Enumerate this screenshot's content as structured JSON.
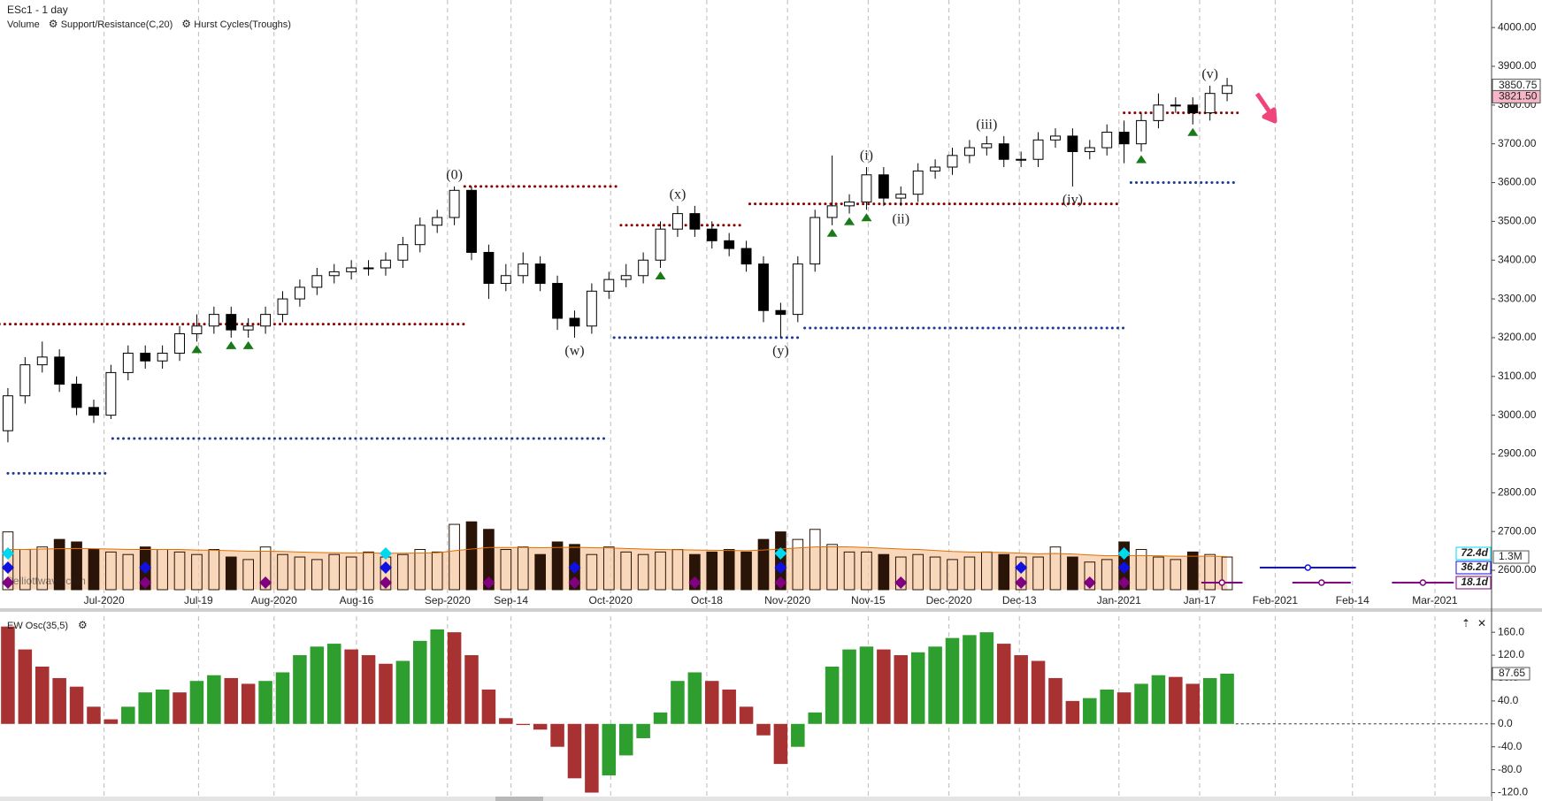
{
  "chart_data": [
    {
      "type": "candlestick",
      "title": "ESc1 - 1 day",
      "indicators": [
        {
          "name": "Volume",
          "color": "#e07000"
        },
        {
          "name": "Support/Resistance(C,20)",
          "color": "#8b0000"
        },
        {
          "name": "Hurst Cycles(Troughs)",
          "color": "#222222"
        }
      ],
      "watermark": "©elliottwave.com",
      "open": [
        2960,
        3050,
        3130,
        3150,
        3080,
        3020,
        3000,
        3110,
        3160,
        3140,
        3160,
        3210,
        3230,
        3260,
        3220,
        3230,
        3260,
        3300,
        3330,
        3360,
        3370,
        3380,
        3380,
        3400,
        3440,
        3490,
        3510,
        3580,
        3420,
        3340,
        3360,
        3390,
        3340,
        3250,
        3230,
        3320,
        3350,
        3360,
        3400,
        3480,
        3520,
        3480,
        3450,
        3430,
        3390,
        3270,
        3260,
        3390,
        3510,
        3540,
        3550,
        3620,
        3560,
        3570,
        3630,
        3640,
        3670,
        3690,
        3700,
        3660,
        3660,
        3710,
        3720,
        3680,
        3690,
        3730,
        3700,
        3760,
        3800,
        3800,
        3780,
        3830
      ],
      "high": [
        3070,
        3150,
        3190,
        3170,
        3100,
        3040,
        3130,
        3180,
        3180,
        3180,
        3230,
        3260,
        3280,
        3280,
        3250,
        3280,
        3320,
        3350,
        3380,
        3390,
        3400,
        3400,
        3420,
        3460,
        3510,
        3530,
        3590,
        3590,
        3440,
        3390,
        3420,
        3410,
        3360,
        3270,
        3340,
        3370,
        3390,
        3420,
        3500,
        3540,
        3540,
        3500,
        3470,
        3450,
        3410,
        3290,
        3410,
        3530,
        3670,
        3570,
        3640,
        3640,
        3590,
        3650,
        3660,
        3690,
        3710,
        3720,
        3720,
        3680,
        3730,
        3740,
        3740,
        3710,
        3750,
        3760,
        3780,
        3830,
        3820,
        3820,
        3850,
        3870
      ],
      "low": [
        2930,
        3030,
        3110,
        3060,
        3000,
        2980,
        2990,
        3090,
        3120,
        3120,
        3140,
        3190,
        3210,
        3200,
        3200,
        3210,
        3240,
        3280,
        3310,
        3340,
        3350,
        3360,
        3360,
        3380,
        3420,
        3470,
        3490,
        3400,
        3300,
        3320,
        3340,
        3320,
        3220,
        3200,
        3210,
        3300,
        3330,
        3340,
        3380,
        3460,
        3460,
        3430,
        3410,
        3370,
        3240,
        3200,
        3240,
        3370,
        3490,
        3520,
        3530,
        3540,
        3540,
        3550,
        3610,
        3620,
        3650,
        3670,
        3640,
        3640,
        3640,
        3690,
        3590,
        3660,
        3670,
        3650,
        3680,
        3740,
        3780,
        3750,
        3760,
        3810
      ],
      "close": [
        3050,
        3130,
        3150,
        3080,
        3020,
        3000,
        3110,
        3160,
        3140,
        3160,
        3210,
        3230,
        3260,
        3220,
        3230,
        3260,
        3300,
        3330,
        3360,
        3370,
        3380,
        3380,
        3400,
        3440,
        3490,
        3510,
        3580,
        3420,
        3340,
        3360,
        3390,
        3340,
        3250,
        3230,
        3320,
        3350,
        3360,
        3400,
        3480,
        3520,
        3480,
        3450,
        3430,
        3390,
        3270,
        3260,
        3390,
        3510,
        3540,
        3550,
        3620,
        3560,
        3570,
        3630,
        3640,
        3670,
        3690,
        3700,
        3660,
        3660,
        3710,
        3720,
        3680,
        3690,
        3730,
        3700,
        3760,
        3800,
        3800,
        3780,
        3830,
        3850
      ],
      "volume": [
        2.3,
        1.6,
        1.7,
        2.0,
        1.9,
        1.6,
        1.5,
        1.4,
        1.7,
        1.6,
        1.5,
        1.4,
        1.6,
        1.3,
        1.2,
        1.7,
        1.4,
        1.3,
        1.2,
        1.4,
        1.3,
        1.5,
        1.3,
        1.4,
        1.6,
        1.5,
        2.6,
        2.7,
        2.4,
        1.6,
        1.7,
        1.4,
        1.9,
        1.8,
        1.4,
        1.7,
        1.5,
        1.4,
        1.5,
        1.6,
        1.4,
        1.5,
        1.6,
        1.5,
        2.0,
        2.3,
        2.0,
        2.4,
        1.8,
        1.5,
        1.5,
        1.4,
        1.3,
        1.4,
        1.3,
        1.2,
        1.3,
        1.5,
        1.4,
        1.3,
        1.3,
        1.7,
        1.3,
        1.1,
        1.2,
        1.9,
        1.6,
        1.3,
        1.2,
        1.5,
        1.4,
        1.3
      ],
      "volume_ma": [
        1.6,
        1.6,
        1.62,
        1.63,
        1.64,
        1.63,
        1.62,
        1.6,
        1.6,
        1.6,
        1.6,
        1.58,
        1.57,
        1.55,
        1.53,
        1.53,
        1.52,
        1.5,
        1.48,
        1.47,
        1.46,
        1.46,
        1.45,
        1.45,
        1.46,
        1.47,
        1.55,
        1.62,
        1.68,
        1.68,
        1.68,
        1.67,
        1.68,
        1.69,
        1.67,
        1.66,
        1.64,
        1.62,
        1.6,
        1.59,
        1.58,
        1.57,
        1.56,
        1.55,
        1.58,
        1.62,
        1.66,
        1.7,
        1.71,
        1.7,
        1.68,
        1.65,
        1.62,
        1.6,
        1.56,
        1.52,
        1.5,
        1.49,
        1.48,
        1.45,
        1.43,
        1.44,
        1.42,
        1.38,
        1.35,
        1.36,
        1.36,
        1.35,
        1.33,
        1.33,
        1.33,
        1.32
      ],
      "volume_ylim": [
        0,
        3.06
      ],
      "volume_ticks": [
        {
          "value": 1.3,
          "label": "1.3M"
        }
      ],
      "up_color": "#ffffff",
      "down_color": "#000000",
      "xlim": [
        -0.46,
        86.4
      ],
      "xticks": [
        {
          "value": 5.6,
          "label": "Jul-2020"
        },
        {
          "value": 11.1,
          "label": "Jul-19"
        },
        {
          "value": 15.5,
          "label": "Aug-2020"
        },
        {
          "value": 20.3,
          "label": "Aug-16"
        },
        {
          "value": 25.6,
          "label": "Sep-2020"
        },
        {
          "value": 29.3,
          "label": "Sep-14"
        },
        {
          "value": 35.1,
          "label": "Oct-2020"
        },
        {
          "value": 40.7,
          "label": "Oct-18"
        },
        {
          "value": 45.4,
          "label": "Nov-2020"
        },
        {
          "value": 50.1,
          "label": "Nov-15"
        },
        {
          "value": 54.8,
          "label": "Dec-2020"
        },
        {
          "value": 58.9,
          "label": "Dec-13"
        },
        {
          "value": 64.7,
          "label": "Jan-2021"
        },
        {
          "value": 69.4,
          "label": "Jan-17"
        },
        {
          "value": 73.8,
          "label": "Feb-2021"
        },
        {
          "value": 78.3,
          "label": "Feb-14"
        },
        {
          "value": 83.1,
          "label": "Mar-2021"
        }
      ],
      "ylim": [
        2502,
        4071
      ],
      "yticks": [
        {
          "value": 2600,
          "label": "2600.00"
        },
        {
          "value": 2700,
          "label": "2700.00"
        },
        {
          "value": 2800,
          "label": "2800.00"
        },
        {
          "value": 2900,
          "label": "2900.00"
        },
        {
          "value": 3000,
          "label": "3000.00"
        },
        {
          "value": 3100,
          "label": "3100.00"
        },
        {
          "value": 3200,
          "label": "3200.00"
        },
        {
          "value": 3300,
          "label": "3300.00"
        },
        {
          "value": 3400,
          "label": "3400.00"
        },
        {
          "value": 3500,
          "label": "3500.00"
        },
        {
          "value": 3600,
          "label": "3600.00"
        },
        {
          "value": 3700,
          "label": "3700.00"
        },
        {
          "value": 3800,
          "label": "3800.00"
        },
        {
          "value": 3900,
          "label": "3900.00"
        },
        {
          "value": 4000,
          "label": "4000.00"
        }
      ],
      "price_markers": [
        {
          "value": 3850.75,
          "color": "#ffffff"
        },
        {
          "value": 3821.5,
          "label": "3821.50",
          "color": "#f7b6c8"
        }
      ],
      "support_resistance": [
        {
          "price": 3235,
          "start": -0.5,
          "end": 26.6,
          "color": "#8b0000"
        },
        {
          "price": 3590,
          "start": 26.6,
          "end": 35.5,
          "color": "#8b0000"
        },
        {
          "price": 3490,
          "start": 35.7,
          "end": 42.9,
          "color": "#8b0000"
        },
        {
          "price": 3545,
          "start": 43.2,
          "end": 64.7,
          "color": "#8b0000"
        },
        {
          "price": 3780,
          "start": 65,
          "end": 71.6,
          "color": "#8b0000"
        },
        {
          "price": 2850,
          "start": 0,
          "end": 5.7,
          "color": "#1f3a93"
        },
        {
          "price": 2940,
          "start": 6.1,
          "end": 35,
          "color": "#1f3a93"
        },
        {
          "price": 3200,
          "start": 35.3,
          "end": 46,
          "color": "#1f3a93"
        },
        {
          "price": 3225,
          "start": 46.4,
          "end": 65.1,
          "color": "#1f3a93"
        },
        {
          "price": 3600,
          "start": 65.4,
          "end": 71.5,
          "color": "#1f3a93"
        }
      ],
      "signals": [
        11,
        13,
        14,
        38,
        48,
        49,
        50,
        66,
        69
      ],
      "signal_color": "#1a7a1a",
      "waves": [
        {
          "text": "(0)",
          "at": 26,
          "side": "above"
        },
        {
          "text": "(w)",
          "at": 33,
          "side": "below"
        },
        {
          "text": "(x)",
          "at": 39,
          "side": "above"
        },
        {
          "text": "(y)",
          "at": 45,
          "side": "below"
        },
        {
          "text": "(i)",
          "at": 50,
          "side": "above"
        },
        {
          "text": "(ii)",
          "at": 52,
          "side": "below"
        },
        {
          "text": "(iii)",
          "at": 57,
          "side": "above"
        },
        {
          "text": "(iv)",
          "at": 62,
          "side": "below"
        },
        {
          "text": "(v)",
          "at": 70,
          "side": "above"
        }
      ],
      "hurst_cycles": [
        {
          "name": "72.4d",
          "color": "#00d8f0",
          "troughs": [
            0,
            22,
            45,
            65
          ],
          "projection": []
        },
        {
          "name": "36.2d",
          "color": "#1010e0",
          "troughs": [
            0,
            8,
            22,
            33,
            45,
            59,
            65
          ],
          "projection": [
            [
              72.9,
              78.5
            ]
          ]
        },
        {
          "name": "18.1d",
          "color": "#800080",
          "troughs": [
            0,
            8,
            15,
            22,
            28,
            33,
            40,
            45,
            52,
            59,
            63,
            65
          ],
          "projection": [
            [
              69.5,
              71.9
            ],
            [
              74.8,
              78.2
            ],
            [
              80.6,
              84.2
            ]
          ]
        }
      ]
    },
    {
      "type": "bar",
      "title": "EW Osc(35,5)",
      "values": [
        170,
        130,
        100,
        80,
        65,
        30,
        8,
        30,
        55,
        60,
        55,
        75,
        85,
        80,
        70,
        75,
        90,
        120,
        135,
        140,
        130,
        120,
        105,
        110,
        145,
        165,
        160,
        120,
        60,
        10,
        -2,
        -10,
        -40,
        -95,
        -120,
        -90,
        -55,
        -25,
        20,
        75,
        90,
        75,
        60,
        30,
        -20,
        -70,
        -40,
        20,
        100,
        130,
        135,
        130,
        120,
        125,
        135,
        150,
        155,
        160,
        140,
        120,
        110,
        80,
        40,
        45,
        60,
        55,
        70,
        85,
        82,
        70,
        80,
        87.65
      ],
      "up_color": "#2e9e2e",
      "down_color": "#a83232",
      "xlim": [
        -0.46,
        86.4
      ],
      "ylim": [
        -130,
        188
      ],
      "yticks": [
        {
          "value": 160,
          "label": "160.0"
        },
        {
          "value": 120,
          "label": "120.0"
        },
        {
          "value": 80,
          "label": "80.0"
        },
        {
          "value": 40,
          "label": "40.0"
        },
        {
          "value": 0,
          "label": "0.0"
        },
        {
          "value": -40,
          "label": "-40.0"
        },
        {
          "value": -80,
          "label": "-80.0"
        },
        {
          "value": -120,
          "label": "-120.0"
        }
      ]
    }
  ]
}
